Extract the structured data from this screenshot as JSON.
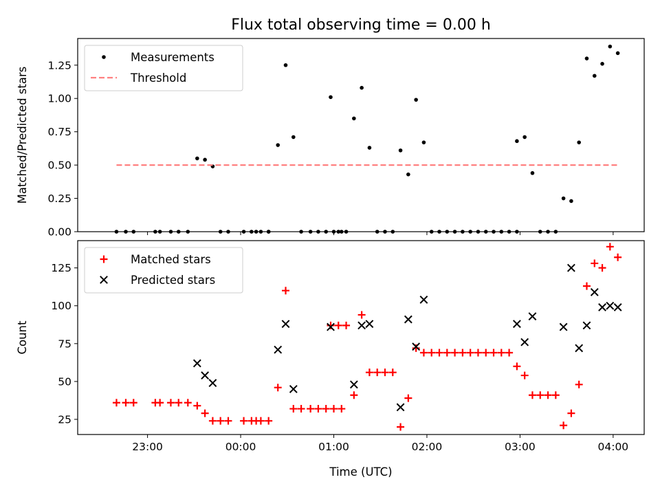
{
  "chart_data": [
    {
      "type": "scatter",
      "title": "Flux total observing time = 0.00 h",
      "xlabel": "",
      "ylabel": "Matched/Predicted stars",
      "xlim": [
        "22:15",
        "04:20"
      ],
      "ylim": [
        0,
        1.45
      ],
      "xticks": [
        "23:00",
        "00:00",
        "01:00",
        "02:00",
        "03:00",
        "04:00"
      ],
      "yticks": [
        "0.00",
        "0.25",
        "0.50",
        "0.75",
        "1.00",
        "1.25"
      ],
      "legend_position": "upper-left",
      "series": [
        {
          "name": "Measurements",
          "marker": "dot",
          "color": "#000000",
          "points": [
            [
              "22:40",
              0
            ],
            [
              "22:46",
              0
            ],
            [
              "22:51",
              0
            ],
            [
              "23:05",
              0
            ],
            [
              "23:08",
              0
            ],
            [
              "23:15",
              0
            ],
            [
              "23:20",
              0
            ],
            [
              "23:26",
              0
            ],
            [
              "23:32",
              0.55
            ],
            [
              "23:37",
              0.54
            ],
            [
              "23:42",
              0.49
            ],
            [
              "23:47",
              0
            ],
            [
              "23:52",
              0
            ],
            [
              "00:02",
              0
            ],
            [
              "00:07",
              0
            ],
            [
              "00:10",
              0
            ],
            [
              "00:13",
              0
            ],
            [
              "00:18",
              0
            ],
            [
              "00:18",
              0
            ],
            [
              "00:24",
              0.65
            ],
            [
              "00:29",
              1.25
            ],
            [
              "00:34",
              0.71
            ],
            [
              "00:39",
              0
            ],
            [
              "00:45",
              0
            ],
            [
              "00:50",
              0
            ],
            [
              "00:55",
              0
            ],
            [
              "01:00",
              0
            ],
            [
              "01:05",
              0
            ],
            [
              "00:58",
              1.01
            ],
            [
              "01:03",
              0
            ],
            [
              "01:08",
              0
            ],
            [
              "01:13",
              0.85
            ],
            [
              "01:18",
              1.08
            ],
            [
              "01:23",
              0.63
            ],
            [
              "01:28",
              0
            ],
            [
              "01:33",
              0
            ],
            [
              "01:38",
              0
            ],
            [
              "01:43",
              0.61
            ],
            [
              "01:48",
              0.43
            ],
            [
              "01:53",
              0.99
            ],
            [
              "01:58",
              0.67
            ],
            [
              "02:03",
              0
            ],
            [
              "02:08",
              0
            ],
            [
              "02:13",
              0
            ],
            [
              "02:18",
              0
            ],
            [
              "02:23",
              0
            ],
            [
              "02:28",
              0
            ],
            [
              "02:33",
              0
            ],
            [
              "02:38",
              0
            ],
            [
              "02:43",
              0
            ],
            [
              "02:48",
              0
            ],
            [
              "02:53",
              0
            ],
            [
              "02:58",
              0
            ],
            [
              "02:58",
              0.68
            ],
            [
              "03:03",
              0.71
            ],
            [
              "03:08",
              0.44
            ],
            [
              "03:13",
              0
            ],
            [
              "03:18",
              0
            ],
            [
              "03:23",
              0
            ],
            [
              "03:28",
              0.25
            ],
            [
              "03:33",
              0.23
            ],
            [
              "03:38",
              0.67
            ],
            [
              "03:43",
              1.3
            ],
            [
              "03:48",
              1.17
            ],
            [
              "03:53",
              1.26
            ],
            [
              "03:58",
              1.39
            ],
            [
              "04:03",
              1.34
            ]
          ]
        },
        {
          "name": "Threshold",
          "marker": "dashed-line",
          "color": "#ff8080",
          "points": [
            [
              "22:40",
              0.5
            ],
            [
              "04:03",
              0.5
            ]
          ]
        }
      ]
    },
    {
      "type": "scatter",
      "title": "",
      "xlabel": "Time (UTC)",
      "ylabel": "Count",
      "xlim": [
        "22:15",
        "04:20"
      ],
      "ylim": [
        15,
        143
      ],
      "xticks": [
        "23:00",
        "00:00",
        "01:00",
        "02:00",
        "03:00",
        "04:00"
      ],
      "yticks": [
        "25",
        "50",
        "75",
        "100",
        "125"
      ],
      "legend_position": "upper-left",
      "series": [
        {
          "name": "Matched stars",
          "marker": "plus",
          "color": "#ff0000",
          "points": [
            [
              "22:40",
              36
            ],
            [
              "22:46",
              36
            ],
            [
              "22:51",
              36
            ],
            [
              "23:05",
              36
            ],
            [
              "23:08",
              36
            ],
            [
              "23:15",
              36
            ],
            [
              "23:20",
              36
            ],
            [
              "23:26",
              36
            ],
            [
              "23:32",
              34
            ],
            [
              "23:37",
              29
            ],
            [
              "23:42",
              24
            ],
            [
              "23:47",
              24
            ],
            [
              "23:52",
              24
            ],
            [
              "00:02",
              24
            ],
            [
              "00:07",
              24
            ],
            [
              "00:10",
              24
            ],
            [
              "00:13",
              24
            ],
            [
              "00:18",
              24
            ],
            [
              "00:24",
              46
            ],
            [
              "00:29",
              110
            ],
            [
              "00:34",
              32
            ],
            [
              "00:39",
              32
            ],
            [
              "00:45",
              32
            ],
            [
              "00:50",
              32
            ],
            [
              "00:55",
              32
            ],
            [
              "01:00",
              32
            ],
            [
              "01:05",
              32
            ],
            [
              "00:58",
              87
            ],
            [
              "01:03",
              87
            ],
            [
              "01:08",
              87
            ],
            [
              "01:13",
              41
            ],
            [
              "01:18",
              94
            ],
            [
              "01:23",
              56
            ],
            [
              "01:28",
              56
            ],
            [
              "01:33",
              56
            ],
            [
              "01:38",
              56
            ],
            [
              "01:43",
              20
            ],
            [
              "01:48",
              39
            ],
            [
              "01:53",
              72
            ],
            [
              "01:58",
              69
            ],
            [
              "02:03",
              69
            ],
            [
              "02:08",
              69
            ],
            [
              "02:13",
              69
            ],
            [
              "02:18",
              69
            ],
            [
              "02:23",
              69
            ],
            [
              "02:28",
              69
            ],
            [
              "02:33",
              69
            ],
            [
              "02:38",
              69
            ],
            [
              "02:43",
              69
            ],
            [
              "02:48",
              69
            ],
            [
              "02:53",
              69
            ],
            [
              "02:58",
              60
            ],
            [
              "03:03",
              54
            ],
            [
              "03:08",
              41
            ],
            [
              "03:13",
              41
            ],
            [
              "03:18",
              41
            ],
            [
              "03:23",
              41
            ],
            [
              "03:28",
              21
            ],
            [
              "03:33",
              29
            ],
            [
              "03:38",
              48
            ],
            [
              "03:43",
              113
            ],
            [
              "03:48",
              128
            ],
            [
              "03:53",
              125
            ],
            [
              "03:58",
              139
            ],
            [
              "04:03",
              132
            ]
          ]
        },
        {
          "name": "Predicted stars",
          "marker": "x",
          "color": "#000000",
          "points": [
            [
              "23:32",
              62
            ],
            [
              "23:37",
              54
            ],
            [
              "23:42",
              49
            ],
            [
              "00:24",
              71
            ],
            [
              "00:29",
              88
            ],
            [
              "00:34",
              45
            ],
            [
              "00:58",
              86
            ],
            [
              "01:13",
              48
            ],
            [
              "01:18",
              87
            ],
            [
              "01:23",
              88
            ],
            [
              "01:43",
              33
            ],
            [
              "01:48",
              91
            ],
            [
              "01:53",
              73
            ],
            [
              "01:58",
              104
            ],
            [
              "02:58",
              88
            ],
            [
              "03:03",
              76
            ],
            [
              "03:08",
              93
            ],
            [
              "03:28",
              86
            ],
            [
              "03:33",
              125
            ],
            [
              "03:38",
              72
            ],
            [
              "03:43",
              87
            ],
            [
              "03:48",
              109
            ],
            [
              "03:53",
              99
            ],
            [
              "03:58",
              100
            ],
            [
              "04:03",
              99
            ]
          ]
        }
      ]
    }
  ]
}
